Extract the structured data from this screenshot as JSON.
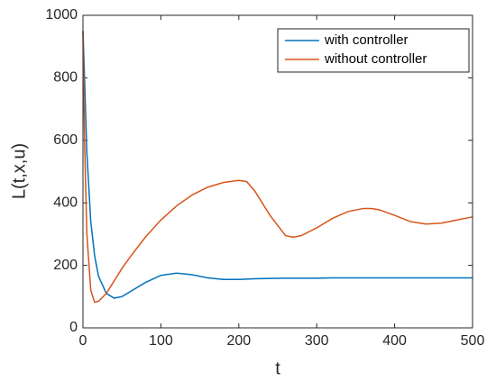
{
  "chart_data": {
    "type": "line",
    "xlabel": "t",
    "ylabel": "L(t,x,u)",
    "x": [
      0,
      2,
      5,
      10,
      15,
      20,
      30,
      40,
      50,
      60,
      80,
      100,
      120,
      140,
      160,
      180,
      200,
      210,
      220,
      240,
      260,
      270,
      280,
      300,
      320,
      340,
      360,
      370,
      380,
      400,
      420,
      440,
      460,
      480,
      500
    ],
    "series": [
      {
        "name": "with controller",
        "color": "#0072bd",
        "values": [
          950,
          800,
          560,
          340,
          230,
          165,
          110,
          95,
          100,
          115,
          145,
          168,
          175,
          170,
          160,
          155,
          155,
          156,
          157,
          158,
          159,
          159,
          159,
          159,
          160,
          160,
          160,
          160,
          160,
          160,
          160,
          160,
          160,
          160,
          160
        ]
      },
      {
        "name": "without controller",
        "color": "#d95319",
        "values": [
          950,
          600,
          300,
          120,
          82,
          85,
          110,
          150,
          190,
          225,
          290,
          345,
          390,
          425,
          450,
          465,
          472,
          468,
          440,
          360,
          295,
          290,
          295,
          320,
          350,
          372,
          382,
          382,
          378,
          360,
          340,
          332,
          335,
          345,
          355
        ]
      }
    ],
    "xlim": [
      0,
      500
    ],
    "xticks": [
      0,
      100,
      200,
      300,
      400,
      500
    ],
    "ylim": [
      0,
      1000
    ],
    "yticks": [
      0,
      200,
      400,
      600,
      800,
      1000
    ],
    "legend": "northeast"
  }
}
